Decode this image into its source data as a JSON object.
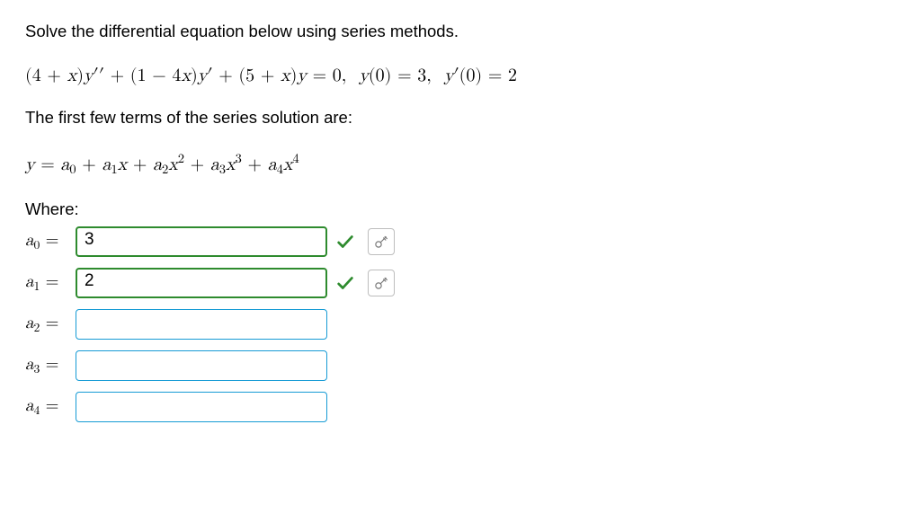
{
  "prompt1": "Solve the differential equation below using series methods.",
  "equation_html": "(4 + <i>x</i>)<i>y</i>′′ + (1 − 4<i>x</i>)<i>y</i>′ + (5 + <i>x</i>)<i>y</i> = 0,<span class=\"spacer-lg\"></span><i>y</i>(0) = 3,<span class=\"spacer-lg\"></span><i>y</i>′(0) = 2",
  "prompt2": "The first few terms of the series solution are:",
  "series_html": "<i>y</i> = <i>a</i><span class=\"sub\">0</span> + <i>a</i><span class=\"sub\">1</span><i>x</i> + <i>a</i><span class=\"sub\">2</span><i>x</i><span class=\"sup\">2</span> + <i>a</i><span class=\"sub\">3</span><i>x</i><span class=\"sup\">3</span> + <i>a</i><span class=\"sub\">4</span><i>x</i><span class=\"sup\">4</span>",
  "where_label": "Where:",
  "rows": [
    {
      "coef": "a",
      "index": "0",
      "value": "3",
      "correct": true,
      "show_pref": true
    },
    {
      "coef": "a",
      "index": "1",
      "value": "2",
      "correct": true,
      "show_pref": true
    },
    {
      "coef": "a",
      "index": "2",
      "value": "",
      "correct": false,
      "show_pref": false
    },
    {
      "coef": "a",
      "index": "3",
      "value": "",
      "correct": false,
      "show_pref": false
    },
    {
      "coef": "a",
      "index": "4",
      "value": "",
      "correct": false,
      "show_pref": false
    }
  ],
  "colors": {
    "correct_green": "#2e8b2e",
    "input_border": "#169bd5",
    "pref_stroke": "#7a7a7a"
  }
}
